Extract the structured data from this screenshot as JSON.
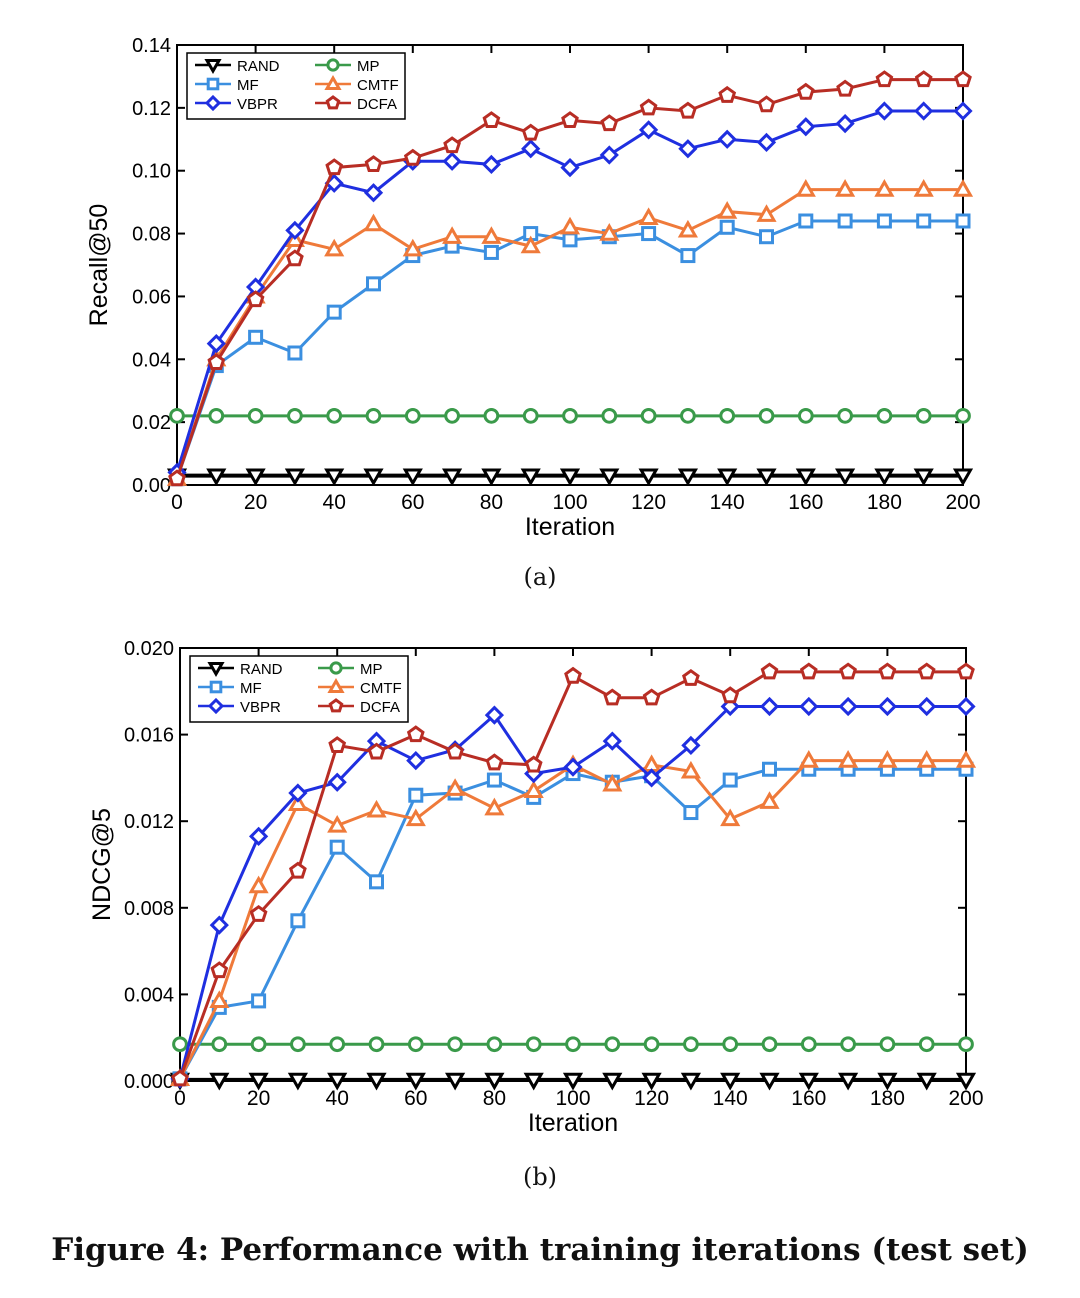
{
  "figure_caption": "Figure 4: Performance with training iterations (test set)",
  "chart_data": [
    {
      "type": "line",
      "panel_label": "(a)",
      "xlabel": "Iteration",
      "ylabel": "Recall@50",
      "xlim": [
        0,
        200
      ],
      "ylim": [
        0,
        0.14
      ],
      "xticks": [
        "0",
        "20",
        "40",
        "60",
        "80",
        "100",
        "120",
        "140",
        "160",
        "180",
        "200"
      ],
      "yticks": [
        "0.00",
        "0.02",
        "0.04",
        "0.06",
        "0.08",
        "0.10",
        "0.12",
        "0.14"
      ],
      "x": [
        0,
        10,
        20,
        30,
        40,
        50,
        60,
        70,
        80,
        90,
        100,
        110,
        120,
        130,
        140,
        150,
        160,
        170,
        180,
        190,
        200
      ],
      "legend": "top-left",
      "series": [
        {
          "name": "RAND",
          "color": "#000000",
          "marker": "triangle-down",
          "values": [
            0.003,
            0.003,
            0.003,
            0.003,
            0.003,
            0.003,
            0.003,
            0.003,
            0.003,
            0.003,
            0.003,
            0.003,
            0.003,
            0.003,
            0.003,
            0.003,
            0.003,
            0.003,
            0.003,
            0.003,
            0.003
          ]
        },
        {
          "name": "MP",
          "color": "#3a9a4a",
          "marker": "circle",
          "values": [
            0.022,
            0.022,
            0.022,
            0.022,
            0.022,
            0.022,
            0.022,
            0.022,
            0.022,
            0.022,
            0.022,
            0.022,
            0.022,
            0.022,
            0.022,
            0.022,
            0.022,
            0.022,
            0.022,
            0.022,
            0.022
          ]
        },
        {
          "name": "MF",
          "color": "#3b8fe0",
          "marker": "square",
          "values": [
            0.002,
            0.038,
            0.047,
            0.042,
            0.055,
            0.064,
            0.073,
            0.076,
            0.074,
            0.08,
            0.078,
            0.079,
            0.08,
            0.073,
            0.082,
            0.079,
            0.084,
            0.084,
            0.084,
            0.084,
            0.084
          ]
        },
        {
          "name": "CMTF",
          "color": "#ef7a3a",
          "marker": "triangle-up",
          "values": [
            0.002,
            0.04,
            0.06,
            0.078,
            0.075,
            0.083,
            0.075,
            0.079,
            0.079,
            0.076,
            0.082,
            0.08,
            0.085,
            0.081,
            0.087,
            0.086,
            0.094,
            0.094,
            0.094,
            0.094,
            0.094
          ]
        },
        {
          "name": "VBPR",
          "color": "#1f2fe0",
          "marker": "diamond",
          "values": [
            0.004,
            0.045,
            0.063,
            0.081,
            0.096,
            0.093,
            0.103,
            0.103,
            0.102,
            0.107,
            0.101,
            0.105,
            0.113,
            0.107,
            0.11,
            0.109,
            0.114,
            0.115,
            0.119,
            0.119,
            0.119
          ]
        },
        {
          "name": "DCFA",
          "color": "#b82d24",
          "marker": "pentagon",
          "values": [
            0.002,
            0.039,
            0.059,
            0.072,
            0.101,
            0.102,
            0.104,
            0.108,
            0.116,
            0.112,
            0.116,
            0.115,
            0.12,
            0.119,
            0.124,
            0.121,
            0.125,
            0.126,
            0.129,
            0.129,
            0.129
          ]
        }
      ]
    },
    {
      "type": "line",
      "panel_label": "(b)",
      "xlabel": "Iteration",
      "ylabel": "NDCG@5",
      "xlim": [
        0,
        200
      ],
      "ylim": [
        0,
        0.02
      ],
      "xticks": [
        "0",
        "20",
        "40",
        "60",
        "80",
        "100",
        "120",
        "140",
        "160",
        "180",
        "200"
      ],
      "yticks": [
        "0.000",
        "0.004",
        "0.008",
        "0.012",
        "0.016",
        "0.020"
      ],
      "x": [
        0,
        10,
        20,
        30,
        40,
        50,
        60,
        70,
        80,
        90,
        100,
        110,
        120,
        130,
        140,
        150,
        160,
        170,
        180,
        190,
        200
      ],
      "legend": "top-left",
      "series": [
        {
          "name": "RAND",
          "color": "#000000",
          "marker": "triangle-down",
          "values": [
            5e-05,
            5e-05,
            5e-05,
            5e-05,
            5e-05,
            5e-05,
            5e-05,
            5e-05,
            5e-05,
            5e-05,
            5e-05,
            5e-05,
            5e-05,
            5e-05,
            5e-05,
            5e-05,
            5e-05,
            5e-05,
            5e-05,
            5e-05,
            5e-05
          ]
        },
        {
          "name": "MP",
          "color": "#3a9a4a",
          "marker": "circle",
          "values": [
            0.0017,
            0.0017,
            0.0017,
            0.0017,
            0.0017,
            0.0017,
            0.0017,
            0.0017,
            0.0017,
            0.0017,
            0.0017,
            0.0017,
            0.0017,
            0.0017,
            0.0017,
            0.0017,
            0.0017,
            0.0017,
            0.0017,
            0.0017,
            0.0017
          ]
        },
        {
          "name": "MF",
          "color": "#3b8fe0",
          "marker": "square",
          "values": [
            0.0001,
            0.0034,
            0.0037,
            0.0074,
            0.0108,
            0.0092,
            0.0132,
            0.0133,
            0.0139,
            0.0131,
            0.0142,
            0.0138,
            0.0141,
            0.0124,
            0.0139,
            0.0144,
            0.0144,
            0.0144,
            0.0144,
            0.0144,
            0.0144
          ]
        },
        {
          "name": "CMTF",
          "color": "#ef7a3a",
          "marker": "triangle-up",
          "values": [
            0.0001,
            0.0037,
            0.009,
            0.0128,
            0.0118,
            0.0125,
            0.0121,
            0.0135,
            0.0126,
            0.0134,
            0.0146,
            0.0137,
            0.0146,
            0.0143,
            0.0121,
            0.0129,
            0.0148,
            0.0148,
            0.0148,
            0.0148,
            0.0148
          ]
        },
        {
          "name": "VBPR",
          "color": "#1f2fe0",
          "marker": "diamond",
          "values": [
            0.0001,
            0.0072,
            0.0113,
            0.0133,
            0.0138,
            0.0157,
            0.0148,
            0.0153,
            0.0169,
            0.0142,
            0.0145,
            0.0157,
            0.014,
            0.0155,
            0.0173,
            0.0173,
            0.0173,
            0.0173,
            0.0173,
            0.0173,
            0.0173
          ]
        },
        {
          "name": "DCFA",
          "color": "#b82d24",
          "marker": "pentagon",
          "values": [
            0.0001,
            0.0051,
            0.0077,
            0.0097,
            0.0155,
            0.0152,
            0.016,
            0.0152,
            0.0147,
            0.0146,
            0.0187,
            0.0177,
            0.0177,
            0.0186,
            0.0178,
            0.0189,
            0.0189,
            0.0189,
            0.0189,
            0.0189,
            0.0189
          ]
        }
      ]
    }
  ]
}
